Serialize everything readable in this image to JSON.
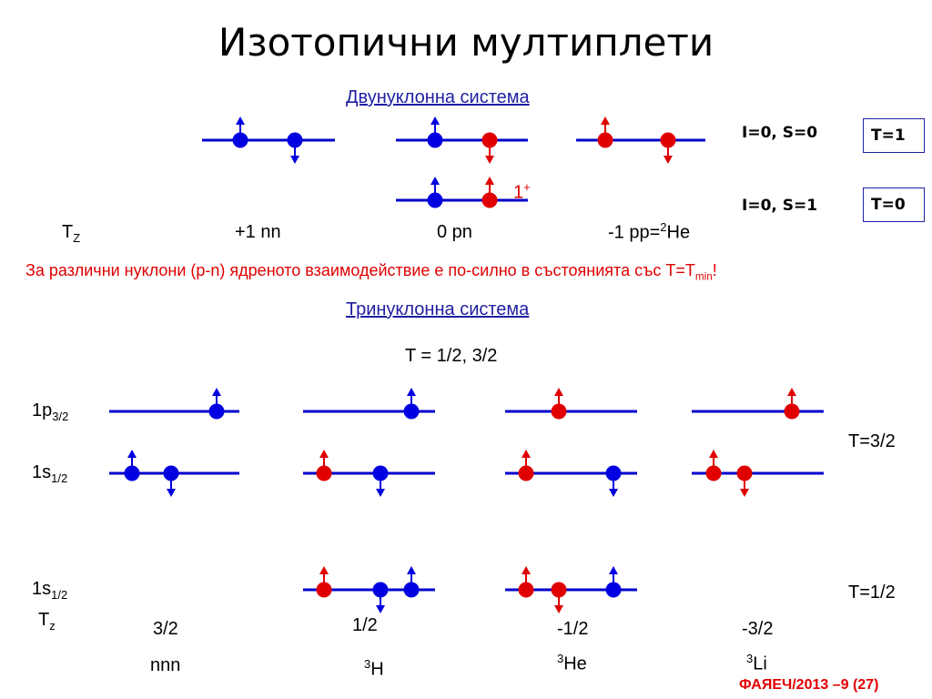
{
  "title": "Изотопични мултиплети",
  "two_nucleon": {
    "heading": "Двунуклонна система",
    "state1_label": "I=0, S=0",
    "state1_T": "T=1",
    "state2_label": "I=0, S=1",
    "state2_T": "T=0",
    "tz_symbol": "T",
    "tz_sub": "Z",
    "nn": "+1 nn",
    "pn": "0 pn",
    "pp_prefix": "-1 pp=",
    "pp_mass": "2",
    "pp_element": "He",
    "jp_value": "1",
    "jp_parity": "+"
  },
  "statement": {
    "text": "За различни нуклони (p-n) ядреното взаимодействие е по-силно в състоянията със T=T",
    "sub": "min",
    "end": "!"
  },
  "three_nucleon": {
    "heading": "Тринуклонна система",
    "T_values": "T = 1/2, 3/2",
    "level_1p_base": "1p",
    "level_1p_sub": "3/2",
    "level_1s_base": "1s",
    "level_1s_sub": "1/2",
    "T32": "T=3/2",
    "T12": "T=1/2",
    "tz_symbol": "T",
    "tz_sub": "z",
    "tz_values": [
      "3/2",
      "1/2",
      "-1/2",
      "-3/2"
    ],
    "nnn": "nnn",
    "h_mass": "3",
    "h_el": "H",
    "he_mass": "3",
    "he_el": "He",
    "li_mass": "3",
    "li_el": "Li"
  },
  "footer": "ФАЯЕЧ/2013 –9 (27)",
  "colors": {
    "neutron": "#0000e0",
    "proton": "#e00000",
    "line": "#0000cc",
    "heading": "#1f1fa3"
  },
  "diagram": {
    "levels": [
      [
        222,
        154,
        368
      ],
      [
        435,
        154,
        580
      ],
      [
        633,
        154,
        775
      ],
      [
        435,
        220,
        580
      ],
      [
        120,
        452,
        263
      ],
      [
        333,
        452,
        478
      ],
      [
        555,
        452,
        700
      ],
      [
        760,
        452,
        905
      ],
      [
        120,
        520,
        263
      ],
      [
        333,
        520,
        478
      ],
      [
        555,
        520,
        700
      ],
      [
        760,
        520,
        905
      ],
      [
        333,
        648,
        478
      ],
      [
        555,
        648,
        700
      ]
    ],
    "particles": [
      [
        "n",
        264,
        154,
        "up"
      ],
      [
        "n",
        324,
        154,
        "down"
      ],
      [
        "n",
        478,
        154,
        "up"
      ],
      [
        "p",
        538,
        154,
        "down"
      ],
      [
        "p",
        665,
        154,
        "up"
      ],
      [
        "p",
        734,
        154,
        "down"
      ],
      [
        "n",
        478,
        220,
        "up"
      ],
      [
        "p",
        538,
        220,
        "up"
      ],
      [
        "n",
        238,
        452,
        "up"
      ],
      [
        "n",
        452,
        452,
        "up"
      ],
      [
        "p",
        614,
        452,
        "up"
      ],
      [
        "p",
        870,
        452,
        "up"
      ],
      [
        "n",
        145,
        520,
        "up"
      ],
      [
        "n",
        188,
        520,
        "down"
      ],
      [
        "p",
        356,
        520,
        "up"
      ],
      [
        "n",
        418,
        520,
        "down"
      ],
      [
        "p",
        578,
        520,
        "up"
      ],
      [
        "n",
        674,
        520,
        "down"
      ],
      [
        "p",
        784,
        520,
        "up"
      ],
      [
        "p",
        818,
        520,
        "down"
      ],
      [
        "p",
        356,
        648,
        "up"
      ],
      [
        "n",
        418,
        648,
        "down"
      ],
      [
        "n",
        452,
        648,
        "up"
      ],
      [
        "p",
        578,
        648,
        "up"
      ],
      [
        "p",
        614,
        648,
        "down"
      ],
      [
        "n",
        674,
        648,
        "up"
      ]
    ]
  }
}
